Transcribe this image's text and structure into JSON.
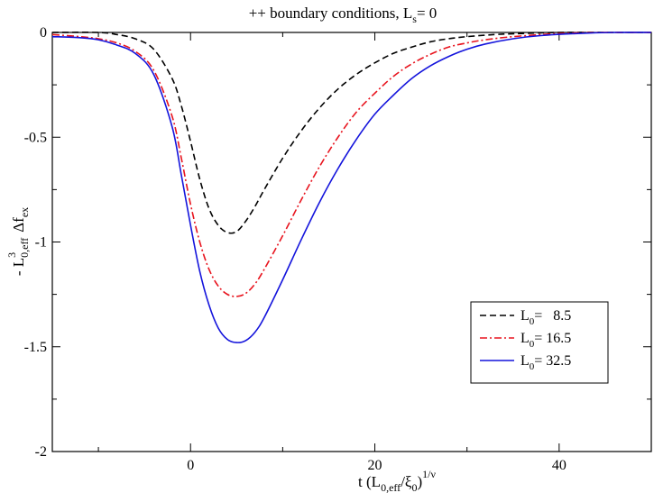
{
  "chart_data": {
    "type": "line",
    "title": "++ boundary conditions, L",
    "title_sub": "s",
    "title_tail": "= 0",
    "xlabel": {
      "main": "t (L",
      "sub1": "0,eff",
      "mid": "/ξ",
      "sub2": "0",
      "close": ")",
      "sup": "1/ν"
    },
    "ylabel": {
      "prefix": "- L",
      "sup": "3",
      "sub": "0,eff",
      "mid": "Δf",
      "sub2": "ex"
    },
    "xlim": [
      -15,
      50
    ],
    "ylim": [
      -2,
      0
    ],
    "xticks": [
      0,
      20,
      40
    ],
    "xtick_labels": [
      "0",
      "20",
      "40"
    ],
    "yticks": [
      0,
      -0.5,
      -1,
      -1.5,
      -2
    ],
    "ytick_labels": [
      "0",
      "-0.5",
      "-1",
      "-1.5",
      "-2"
    ],
    "legend_position": "right-middle",
    "series": [
      {
        "name": "L0 = 8.5",
        "legend": {
          "pre": "L",
          "sub": "0",
          "post": "=   8.5"
        },
        "color": "#000000",
        "style": "dashed",
        "x": [
          -15,
          -10,
          -8,
          -6,
          -4,
          -2,
          -1,
          0,
          1,
          2,
          3,
          4,
          5,
          6,
          7,
          8,
          10,
          12,
          14,
          16,
          18,
          20,
          22,
          24,
          26,
          28,
          30,
          33,
          36,
          40,
          45,
          50
        ],
        "y": [
          0,
          0,
          -0.01,
          -0.03,
          -0.08,
          -0.22,
          -0.35,
          -0.52,
          -0.7,
          -0.84,
          -0.92,
          -0.955,
          -0.95,
          -0.9,
          -0.83,
          -0.75,
          -0.6,
          -0.47,
          -0.36,
          -0.27,
          -0.2,
          -0.145,
          -0.1,
          -0.07,
          -0.045,
          -0.03,
          -0.02,
          -0.01,
          -0.005,
          0,
          0,
          0
        ]
      },
      {
        "name": "L0 = 16.5",
        "legend": {
          "pre": "L",
          "sub": "0",
          "post": "= 16.5"
        },
        "color": "#e8141e",
        "style": "dashdot",
        "x": [
          -15,
          -12,
          -10,
          -8,
          -6,
          -4,
          -2,
          -1,
          0,
          1,
          2,
          3,
          4,
          5,
          6,
          7,
          8,
          10,
          12,
          14,
          16,
          18,
          20,
          22,
          24,
          26,
          28,
          30,
          32,
          35,
          40,
          45,
          50
        ],
        "y": [
          -0.01,
          -0.02,
          -0.03,
          -0.05,
          -0.09,
          -0.18,
          -0.4,
          -0.6,
          -0.82,
          -1.0,
          -1.13,
          -1.21,
          -1.25,
          -1.26,
          -1.245,
          -1.2,
          -1.13,
          -0.97,
          -0.8,
          -0.64,
          -0.5,
          -0.38,
          -0.29,
          -0.21,
          -0.15,
          -0.105,
          -0.07,
          -0.05,
          -0.035,
          -0.02,
          -0.005,
          0,
          0
        ]
      },
      {
        "name": "L0 = 32.5",
        "legend": {
          "pre": "L",
          "sub": "0",
          "post": "= 32.5"
        },
        "color": "#1414dc",
        "style": "solid",
        "x": [
          -15,
          -12,
          -10,
          -8,
          -6,
          -4,
          -2,
          -1,
          0,
          1,
          2,
          3,
          4,
          5,
          6,
          7,
          8,
          10,
          12,
          14,
          16,
          18,
          20,
          22,
          24,
          26,
          28,
          30,
          32,
          35,
          38,
          42,
          46,
          50
        ],
        "y": [
          -0.02,
          -0.025,
          -0.035,
          -0.06,
          -0.1,
          -0.2,
          -0.45,
          -0.68,
          -0.92,
          -1.14,
          -1.3,
          -1.41,
          -1.465,
          -1.48,
          -1.47,
          -1.43,
          -1.36,
          -1.18,
          -0.99,
          -0.81,
          -0.65,
          -0.51,
          -0.39,
          -0.3,
          -0.22,
          -0.16,
          -0.115,
          -0.08,
          -0.055,
          -0.03,
          -0.015,
          -0.005,
          0,
          0
        ]
      }
    ]
  }
}
